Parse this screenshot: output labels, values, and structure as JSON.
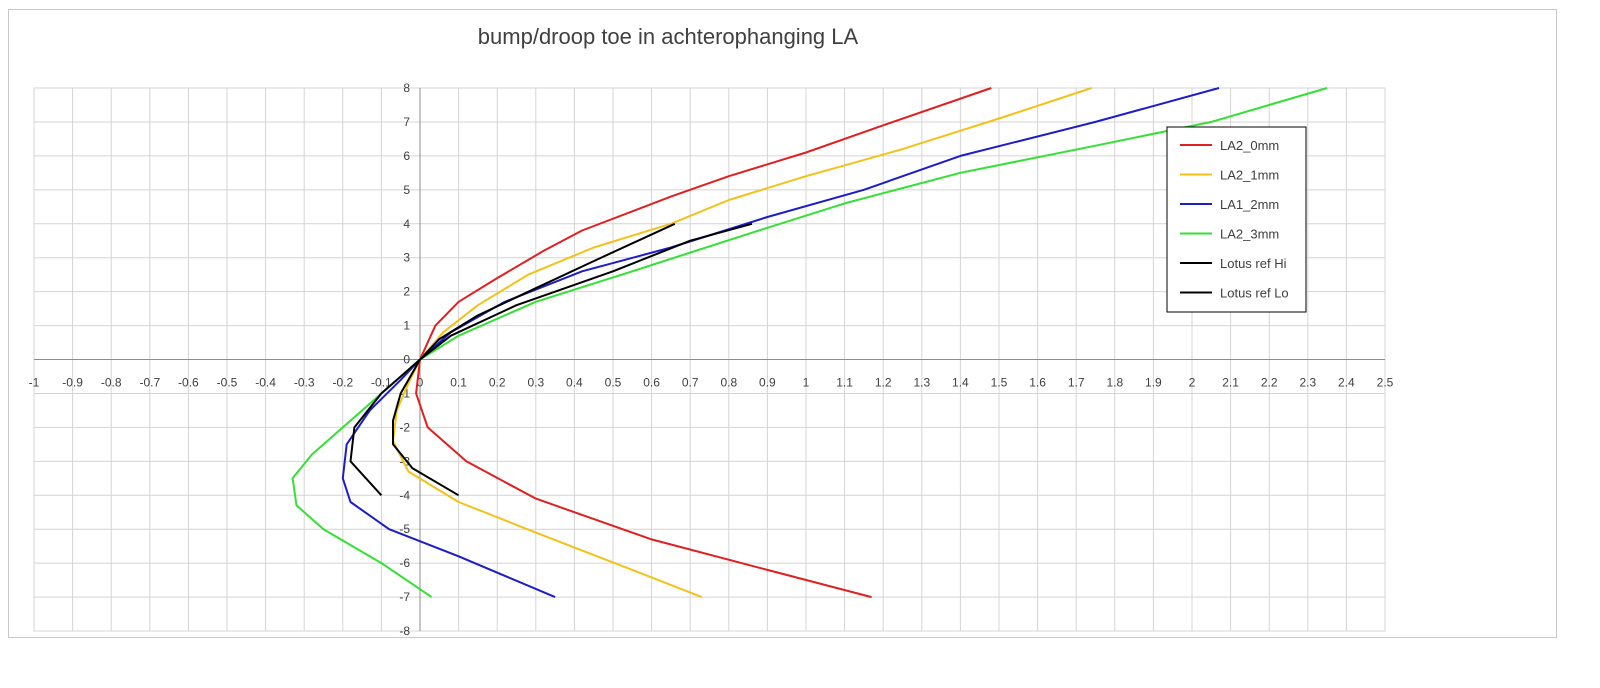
{
  "chart_data": {
    "type": "line",
    "title": "bump/droop toe in achterophanging LA",
    "xlabel": "",
    "ylabel": "",
    "xlim": [
      -1,
      2.5
    ],
    "ylim": [
      -8,
      8
    ],
    "x_ticks": [
      "-1",
      "-0.9",
      "-0.8",
      "-0.7",
      "-0.6",
      "-0.5",
      "-0.4",
      "-0.3",
      "-0.2",
      "-0.1",
      "0",
      "0.1",
      "0.2",
      "0.3",
      "0.4",
      "0.5",
      "0.6",
      "0.7",
      "0.8",
      "0.9",
      "1",
      "1.1",
      "1.2",
      "1.3",
      "1.4",
      "1.5",
      "1.6",
      "1.7",
      "1.8",
      "1.9",
      "2",
      "2.1",
      "2.2",
      "2.3",
      "2.4",
      "2.5"
    ],
    "y_ticks": [
      "8",
      "7",
      "6",
      "5",
      "4",
      "3",
      "2",
      "1",
      "0",
      "-1",
      "-2",
      "-3",
      "-4",
      "-5",
      "-6",
      "-7",
      "-8"
    ],
    "grid": true,
    "legend_position": "right",
    "series": [
      {
        "name": "LA2_0mm",
        "color": "#e02020",
        "points": [
          [
            1.17,
            -7
          ],
          [
            0.9,
            -6.2
          ],
          [
            0.6,
            -5.3
          ],
          [
            0.3,
            -4.1
          ],
          [
            0.12,
            -3
          ],
          [
            0.02,
            -2
          ],
          [
            -0.01,
            -1
          ],
          [
            0,
            0
          ],
          [
            0.04,
            1
          ],
          [
            0.1,
            1.7
          ],
          [
            0.2,
            2.4
          ],
          [
            0.32,
            3.2
          ],
          [
            0.42,
            3.8
          ],
          [
            0.65,
            4.8
          ],
          [
            0.8,
            5.4
          ],
          [
            1,
            6.1
          ],
          [
            1.2,
            6.9
          ],
          [
            1.48,
            8
          ]
        ]
      },
      {
        "name": "LA2_1mm",
        "color": "#f2c218",
        "points": [
          [
            0.73,
            -7
          ],
          [
            0.55,
            -6.2
          ],
          [
            0.3,
            -5.1
          ],
          [
            0.1,
            -4.2
          ],
          [
            -0.03,
            -3.3
          ],
          [
            -0.07,
            -2.4
          ],
          [
            -0.06,
            -1.5
          ],
          [
            -0.03,
            -0.7
          ],
          [
            0,
            0
          ],
          [
            0.06,
            0.8
          ],
          [
            0.15,
            1.6
          ],
          [
            0.28,
            2.5
          ],
          [
            0.45,
            3.3
          ],
          [
            0.65,
            4
          ],
          [
            0.8,
            4.7
          ],
          [
            1,
            5.4
          ],
          [
            1.25,
            6.2
          ],
          [
            1.5,
            7.1
          ],
          [
            1.74,
            8
          ]
        ]
      },
      {
        "name": "LA1_2mm",
        "color": "#1c1cc8",
        "points": [
          [
            0.35,
            -7
          ],
          [
            0.1,
            -5.8
          ],
          [
            -0.08,
            -5
          ],
          [
            -0.18,
            -4.2
          ],
          [
            -0.2,
            -3.5
          ],
          [
            -0.19,
            -2.5
          ],
          [
            -0.13,
            -1.5
          ],
          [
            -0.05,
            -0.6
          ],
          [
            0,
            0
          ],
          [
            0.08,
            0.8
          ],
          [
            0.22,
            1.7
          ],
          [
            0.42,
            2.6
          ],
          [
            0.65,
            3.3
          ],
          [
            0.9,
            4.2
          ],
          [
            1.15,
            5
          ],
          [
            1.4,
            6
          ],
          [
            1.75,
            7
          ],
          [
            2.07,
            8
          ]
        ]
      },
      {
        "name": "LA2_3mm",
        "color": "#33e033",
        "points": [
          [
            0.03,
            -7
          ],
          [
            -0.1,
            -6
          ],
          [
            -0.25,
            -5
          ],
          [
            -0.32,
            -4.3
          ],
          [
            -0.33,
            -3.5
          ],
          [
            -0.28,
            -2.8
          ],
          [
            -0.2,
            -2
          ],
          [
            -0.12,
            -1.2
          ],
          [
            -0.05,
            -0.5
          ],
          [
            0,
            0
          ],
          [
            0.1,
            0.7
          ],
          [
            0.3,
            1.7
          ],
          [
            0.55,
            2.6
          ],
          [
            0.85,
            3.7
          ],
          [
            1.1,
            4.6
          ],
          [
            1.4,
            5.5
          ],
          [
            1.75,
            6.3
          ],
          [
            2.05,
            7
          ],
          [
            2.35,
            8
          ]
        ]
      },
      {
        "name": "Lotus ref Hi",
        "color": "#000000",
        "points": [
          [
            0.1,
            -4
          ],
          [
            -0.02,
            -3.2
          ],
          [
            -0.07,
            -2.5
          ],
          [
            -0.07,
            -1.8
          ],
          [
            -0.05,
            -1
          ],
          [
            -0.02,
            -0.4
          ],
          [
            0,
            0
          ],
          [
            0.05,
            0.6
          ],
          [
            0.15,
            1.3
          ],
          [
            0.3,
            2.1
          ],
          [
            0.45,
            2.9
          ],
          [
            0.66,
            4
          ]
        ]
      },
      {
        "name": "Lotus ref Lo",
        "color": "#000000",
        "points": [
          [
            -0.1,
            -4
          ],
          [
            -0.18,
            -3
          ],
          [
            -0.17,
            -2
          ],
          [
            -0.1,
            -1
          ],
          [
            -0.04,
            -0.4
          ],
          [
            0,
            0
          ],
          [
            0.08,
            0.7
          ],
          [
            0.25,
            1.6
          ],
          [
            0.5,
            2.6
          ],
          [
            0.7,
            3.5
          ],
          [
            0.86,
            4
          ]
        ]
      }
    ]
  }
}
